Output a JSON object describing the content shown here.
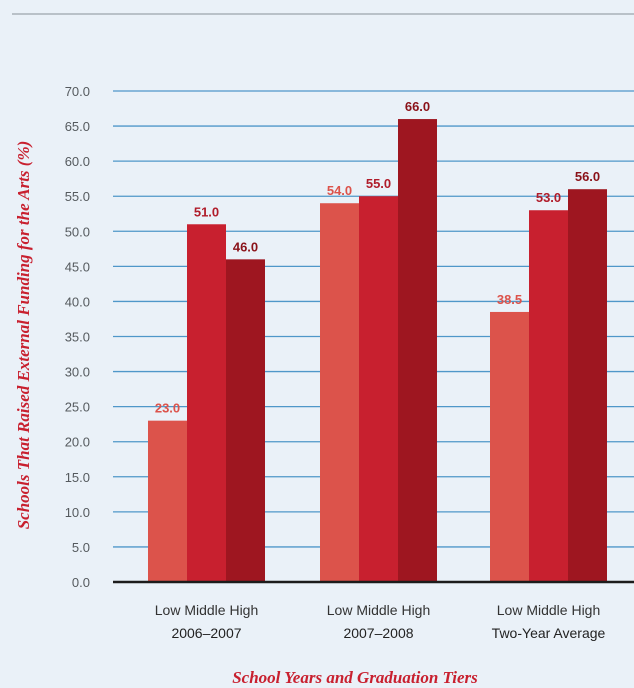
{
  "chart_data": {
    "type": "bar",
    "ylabel": "Schools That Raised External Funding for the Arts (%)",
    "xlabel": "School Years and Graduation Tiers",
    "ylim": [
      0,
      70
    ],
    "yticks": [
      "0.0",
      "5.0",
      "10.0",
      "15.0",
      "20.0",
      "25.0",
      "30.0",
      "35.0",
      "40.0",
      "45.0",
      "50.0",
      "55.0",
      "60.0",
      "65.0",
      "70.0"
    ],
    "grid": true,
    "tiers_label": "Low Middle High",
    "groups": [
      "2006–2007",
      "2007–2008",
      "Two-Year Average"
    ],
    "series": [
      {
        "tier": "Low",
        "color": "#dc534b",
        "label_color": "#dc534b",
        "values": [
          23.0,
          54.0,
          38.5
        ],
        "labels": [
          "23.0",
          "54.0",
          "38.5"
        ]
      },
      {
        "tier": "Middle",
        "color": "#c8202f",
        "label_color": "#b01c2a",
        "values": [
          51.0,
          55.0,
          53.0
        ],
        "labels": [
          "51.0",
          "55.0",
          "53.0"
        ]
      },
      {
        "tier": "High",
        "color": "#9e1620",
        "label_color": "#8a1219",
        "values": [
          46.0,
          66.0,
          56.0
        ],
        "labels": [
          "46.0",
          "66.0",
          "56.0"
        ]
      }
    ]
  }
}
